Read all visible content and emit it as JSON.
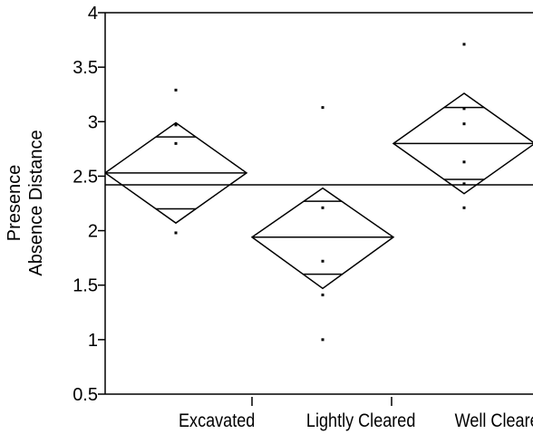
{
  "chart_data": {
    "type": "means-diamonds",
    "ylabel_line1": "Presence",
    "ylabel_line2": "Absence Distance",
    "ylim": [
      0.5,
      4
    ],
    "yticks": [
      "0.5",
      "1",
      "1.5",
      "2",
      "2.5",
      "3",
      "3.5",
      "4"
    ],
    "categories": [
      "Excavated",
      "Lightly Cleared",
      "Well Cleared"
    ],
    "grand_mean": 2.42,
    "groups": [
      {
        "category": "Excavated",
        "mean": 2.53,
        "ci_upper": 2.99,
        "ci_lower": 2.07,
        "overlap_upper": 2.86,
        "overlap_lower": 2.2,
        "points": [
          3.29,
          2.97,
          2.8,
          1.98
        ]
      },
      {
        "category": "Lightly Cleared",
        "mean": 1.94,
        "ci_upper": 2.39,
        "ci_lower": 1.47,
        "overlap_upper": 2.27,
        "overlap_lower": 1.6,
        "points": [
          3.13,
          2.21,
          1.72,
          1.41,
          1.0
        ]
      },
      {
        "category": "Well Cleared",
        "mean": 2.8,
        "ci_upper": 3.26,
        "ci_lower": 2.34,
        "overlap_upper": 3.13,
        "overlap_lower": 2.47,
        "points": [
          3.71,
          3.12,
          2.98,
          2.63,
          2.43,
          2.21
        ]
      }
    ]
  }
}
